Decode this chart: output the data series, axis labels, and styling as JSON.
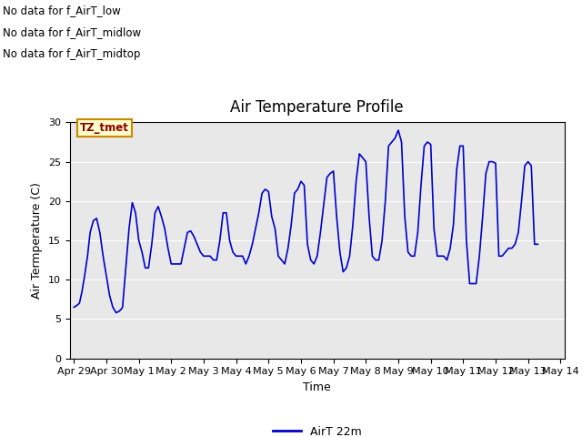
{
  "title": "Air Temperature Profile",
  "ylabel": "Air Termperature (C)",
  "xlabel": "Time",
  "legend_label": "AirT 22m",
  "line_color": "#0000cc",
  "bg_color": "#e8e8e8",
  "ylim": [
    0,
    30
  ],
  "annotations": [
    "No data for f_AirT_low",
    "No data for f_AirT_midlow",
    "No data for f_AirT_midtop"
  ],
  "tz_label": "TZ_tmet",
  "x_tick_labels": [
    "Apr 29",
    "Apr 30",
    "May 1",
    "May 2",
    "May 3",
    "May 4",
    "May 5",
    "May 6",
    "May 7",
    "May 8",
    "May 9",
    "May 10",
    "May 11",
    "May 12",
    "May 13",
    "May 14"
  ],
  "time_data": [
    0.0,
    0.08,
    0.17,
    0.25,
    0.33,
    0.42,
    0.5,
    0.6,
    0.7,
    0.8,
    0.9,
    1.0,
    1.1,
    1.2,
    1.3,
    1.4,
    1.45,
    1.5,
    1.6,
    1.7,
    1.8,
    1.9,
    2.0,
    2.1,
    2.2,
    2.3,
    2.4,
    2.5,
    2.6,
    2.7,
    2.8,
    2.9,
    3.0,
    3.1,
    3.2,
    3.3,
    3.4,
    3.5,
    3.6,
    3.7,
    3.8,
    3.9,
    4.0,
    4.1,
    4.2,
    4.3,
    4.4,
    4.5,
    4.6,
    4.7,
    4.8,
    4.9,
    5.0,
    5.1,
    5.2,
    5.3,
    5.4,
    5.5,
    5.6,
    5.7,
    5.8,
    5.9,
    6.0,
    6.1,
    6.2,
    6.3,
    6.4,
    6.5,
    6.6,
    6.7,
    6.8,
    6.9,
    7.0,
    7.1,
    7.2,
    7.3,
    7.4,
    7.5,
    7.6,
    7.7,
    7.8,
    7.9,
    8.0,
    8.1,
    8.2,
    8.3,
    8.4,
    8.5,
    8.6,
    8.7,
    8.8,
    8.9,
    9.0,
    9.1,
    9.2,
    9.3,
    9.4,
    9.5,
    9.6,
    9.7,
    9.8,
    9.9,
    10.0,
    10.1,
    10.2,
    10.3,
    10.4,
    10.5,
    10.6,
    10.7,
    10.8,
    10.9,
    11.0,
    11.1,
    11.2,
    11.3,
    11.4,
    11.5,
    11.6,
    11.7,
    11.8,
    11.9,
    12.0,
    12.1,
    12.2,
    12.3,
    12.4,
    12.5,
    12.6,
    12.7,
    12.8,
    12.9,
    13.0,
    13.1,
    13.2,
    13.3,
    13.4,
    13.5,
    13.6,
    13.7,
    13.8,
    13.9,
    14.0,
    14.1,
    14.2,
    14.3
  ],
  "temp_data": [
    6.5,
    6.7,
    7.0,
    8.5,
    10.5,
    13.0,
    16.0,
    17.5,
    17.8,
    16.0,
    13.0,
    10.5,
    8.0,
    6.5,
    5.8,
    6.0,
    6.2,
    6.5,
    11.5,
    16.5,
    19.8,
    18.5,
    15.0,
    13.5,
    11.5,
    11.5,
    14.5,
    18.5,
    19.3,
    18.0,
    16.5,
    14.0,
    12.0,
    12.0,
    12.0,
    12.0,
    14.0,
    16.0,
    16.2,
    15.5,
    14.5,
    13.5,
    13.0,
    13.0,
    13.0,
    12.5,
    12.5,
    15.0,
    18.5,
    18.5,
    15.0,
    13.5,
    13.0,
    13.0,
    13.0,
    12.0,
    13.0,
    14.5,
    16.5,
    18.5,
    21.0,
    21.5,
    21.2,
    18.0,
    16.5,
    13.0,
    12.5,
    12.0,
    14.0,
    17.0,
    21.0,
    21.5,
    22.5,
    22.0,
    14.5,
    12.5,
    12.0,
    13.0,
    16.0,
    19.5,
    23.0,
    23.5,
    23.8,
    18.0,
    13.5,
    11.0,
    11.5,
    13.0,
    17.0,
    22.5,
    26.0,
    25.5,
    25.0,
    18.0,
    13.0,
    12.5,
    12.5,
    15.0,
    20.0,
    27.0,
    27.5,
    28.0,
    29.0,
    27.5,
    18.0,
    13.5,
    13.0,
    13.0,
    16.0,
    22.0,
    27.0,
    27.5,
    27.2,
    16.5,
    13.0,
    13.0,
    13.0,
    12.5,
    14.0,
    17.0,
    24.0,
    27.0,
    27.0,
    15.0,
    9.5,
    9.5,
    9.5,
    13.0,
    18.0,
    23.5,
    25.0,
    25.0,
    24.8,
    13.0,
    13.0,
    13.5,
    14.0,
    14.0,
    14.5,
    16.0,
    20.0,
    24.5,
    25.0,
    24.5,
    14.5,
    14.5
  ]
}
